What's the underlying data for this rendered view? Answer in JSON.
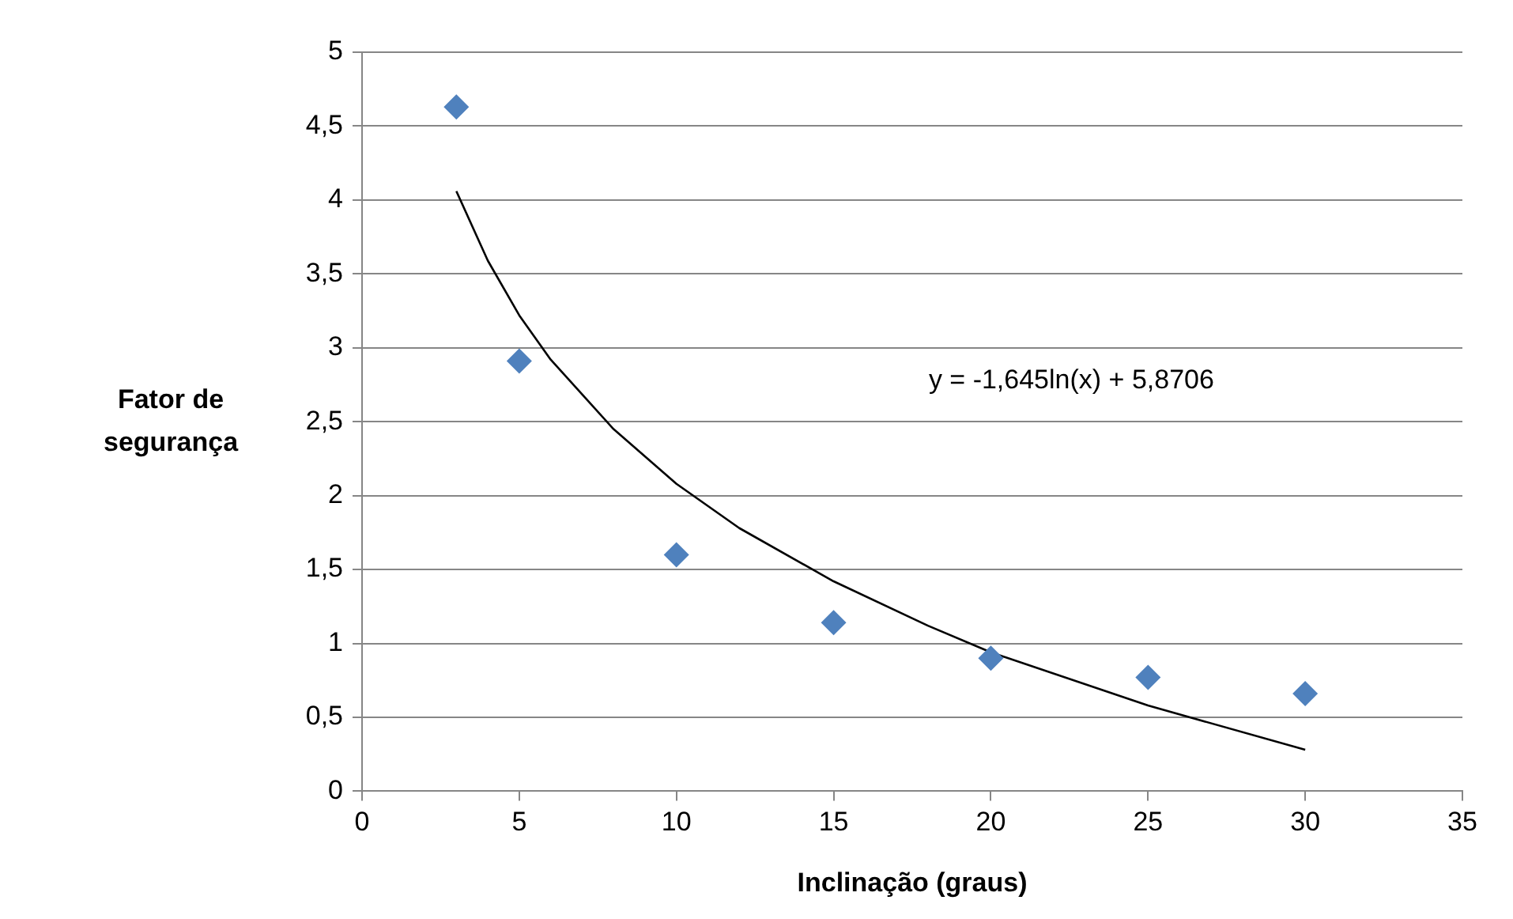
{
  "chart_data": {
    "type": "scatter",
    "xlabel": "Inclinação (graus)",
    "ylabel": "Fator de segurança",
    "series": [
      {
        "type": "scatter",
        "color": "#4f81bd",
        "marker": "diamond",
        "x": [
          3,
          5,
          10,
          15,
          20,
          25,
          30
        ],
        "values": [
          4.63,
          2.91,
          1.6,
          1.14,
          0.9,
          0.77,
          0.66
        ]
      },
      {
        "type": "line",
        "color": "#000000",
        "marker": "none",
        "x": [
          3,
          4,
          5,
          6,
          8,
          10,
          12,
          15,
          18,
          20,
          25,
          30
        ],
        "values": [
          4.06,
          3.59,
          3.22,
          2.92,
          2.45,
          2.08,
          1.78,
          1.42,
          1.12,
          0.94,
          0.58,
          0.28
        ]
      }
    ],
    "xlim": [
      0,
      35
    ],
    "xticks": [
      0,
      5,
      10,
      15,
      20,
      25,
      30,
      35
    ],
    "ylim": [
      0,
      5
    ],
    "yticks": [
      0,
      {
        "value": 0.5,
        "label": "0,5"
      },
      1,
      {
        "value": 1.5,
        "label": "1,5"
      },
      2,
      {
        "value": 2.5,
        "label": "2,5"
      },
      3,
      {
        "value": 3.5,
        "label": "3,5"
      },
      4,
      {
        "value": 4.5,
        "label": "4,5"
      },
      5
    ],
    "grid": "y",
    "legend": false,
    "annotations": [
      "y = -1,645ln(x) + 5,8706"
    ]
  }
}
